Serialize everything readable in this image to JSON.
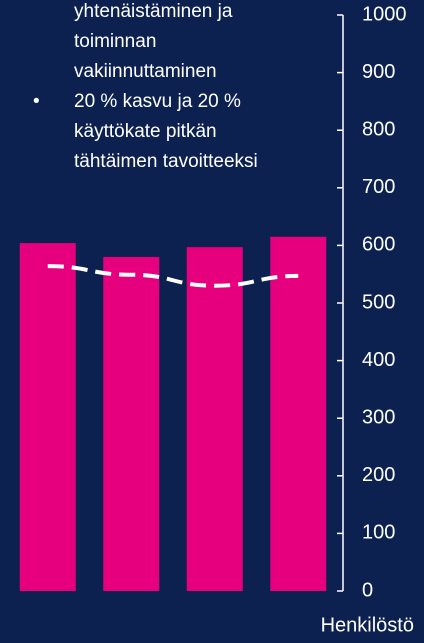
{
  "text": {
    "continued_lines": [
      "yhtenäistäminen ja",
      "toiminnan",
      "vakiinnuttaminen"
    ],
    "bullet": {
      "marker": "•",
      "lines": [
        "20 % kasvu ja 20 %",
        "käyttökate pitkän",
        "tähtäimen tavoitteeksi"
      ]
    }
  },
  "chart_data": {
    "type": "bar",
    "categories": [
      null,
      null,
      null,
      null
    ],
    "series": [
      {
        "type": "bar",
        "color": "#e6007e",
        "values": [
          604,
          580,
          597,
          615
        ]
      },
      {
        "type": "line",
        "color": "#ffffff",
        "dashed": true,
        "values": [
          564,
          549,
          530,
          547
        ]
      }
    ],
    "y_label": "Henkilöstö",
    "ylim": [
      0,
      1000
    ],
    "yticks": [
      0,
      100,
      200,
      300,
      400,
      500,
      600,
      700,
      800,
      900,
      1000
    ],
    "grid": false
  }
}
